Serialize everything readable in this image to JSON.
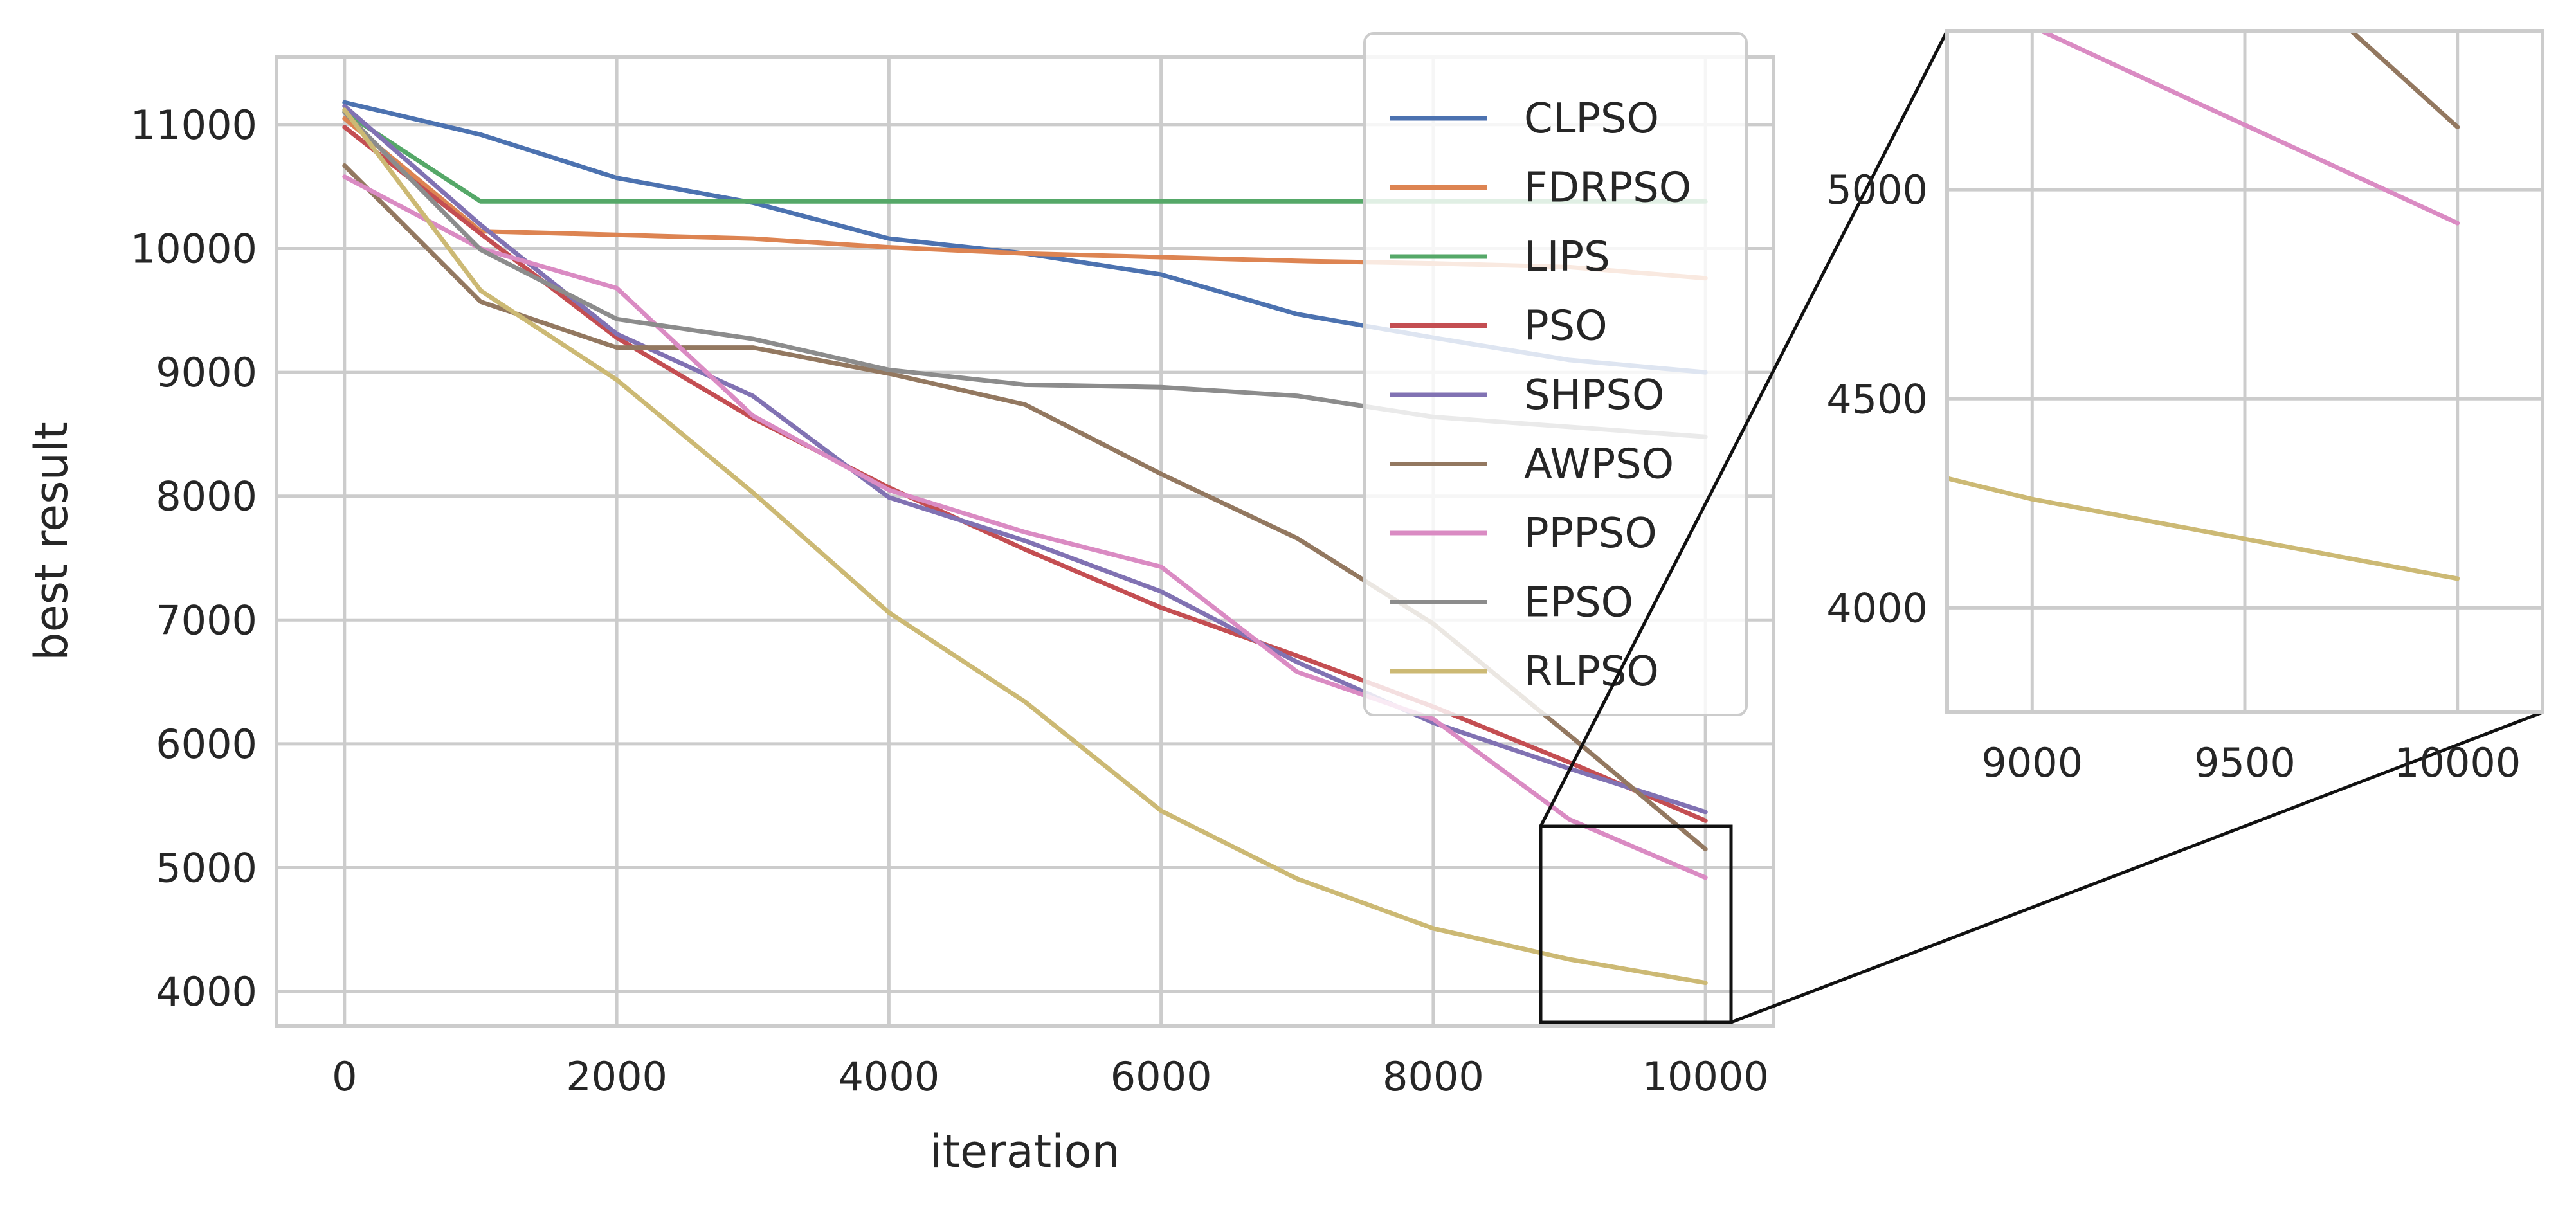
{
  "chart_data": [
    {
      "type": "line",
      "id": "main",
      "title": "",
      "xlabel": "iteration",
      "ylabel": "best result",
      "xlim": [
        -500,
        10500
      ],
      "ylim": [
        3720,
        11550
      ],
      "xticks": [
        0,
        2000,
        4000,
        6000,
        8000,
        10000
      ],
      "xtick_labels": [
        "0",
        "2000",
        "4000",
        "6000",
        "8000",
        "10000"
      ],
      "yticks": [
        4000,
        5000,
        6000,
        7000,
        8000,
        9000,
        10000,
        11000
      ],
      "ytick_labels": [
        "4000",
        "5000",
        "6000",
        "7000",
        "8000",
        "9000",
        "10000",
        "11000"
      ],
      "grid": true,
      "legend_position": "top-right",
      "x": [
        0,
        1000,
        2000,
        3000,
        4000,
        5000,
        6000,
        7000,
        8000,
        9000,
        10000
      ],
      "series": [
        {
          "name": "CLPSO",
          "color": "#4c72b0",
          "values": [
            11180,
            10920,
            10570,
            10370,
            10080,
            9960,
            9790,
            9470,
            9280,
            9100,
            9000
          ]
        },
        {
          "name": "FDRPSO",
          "color": "#dd8452",
          "values": [
            11050,
            10140,
            10110,
            10080,
            10010,
            9960,
            9930,
            9900,
            9880,
            9850,
            9760
          ]
        },
        {
          "name": "LIPS",
          "color": "#55a868",
          "values": [
            11100,
            10380,
            10380,
            10380,
            10380,
            10380,
            10380,
            10380,
            10380,
            10380,
            10380
          ]
        },
        {
          "name": "PSO",
          "color": "#c44e52",
          "values": [
            10980,
            10120,
            9280,
            8630,
            8070,
            7570,
            7100,
            6710,
            6300,
            5850,
            5380
          ]
        },
        {
          "name": "SHPSO",
          "color": "#8172b3",
          "values": [
            11150,
            10190,
            9310,
            8810,
            7990,
            7640,
            7230,
            6660,
            6170,
            5800,
            5450
          ]
        },
        {
          "name": "AWPSO",
          "color": "#937860",
          "values": [
            10670,
            9570,
            9200,
            9200,
            8990,
            8740,
            8180,
            7660,
            6970,
            6070,
            5150
          ]
        },
        {
          "name": "PPPSO",
          "color": "#da8bc3",
          "values": [
            10580,
            10000,
            9680,
            8650,
            8050,
            7710,
            7430,
            6580,
            6200,
            5390,
            4920
          ]
        },
        {
          "name": "EPSO",
          "color": "#8c8c8c",
          "values": [
            11100,
            9990,
            9430,
            9270,
            9020,
            8900,
            8880,
            8810,
            8640,
            8560,
            8480
          ]
        },
        {
          "name": "RLPSO",
          "color": "#ccb974",
          "values": [
            11120,
            9660,
            8940,
            8030,
            7060,
            6340,
            5460,
            4910,
            4510,
            4260,
            4070
          ]
        }
      ]
    },
    {
      "type": "line",
      "id": "inset",
      "title": "",
      "xlabel": "",
      "ylabel": "",
      "xlim": [
        8800,
        10200
      ],
      "ylim": [
        3750,
        5380
      ],
      "xticks": [
        9000,
        9500,
        10000
      ],
      "xtick_labels": [
        "9000",
        "9500",
        "10000"
      ],
      "yticks": [
        4000,
        4500,
        5000
      ],
      "ytick_labels": [
        "4000",
        "4500",
        "5000"
      ],
      "grid": true,
      "zoom_of": "main"
    }
  ]
}
